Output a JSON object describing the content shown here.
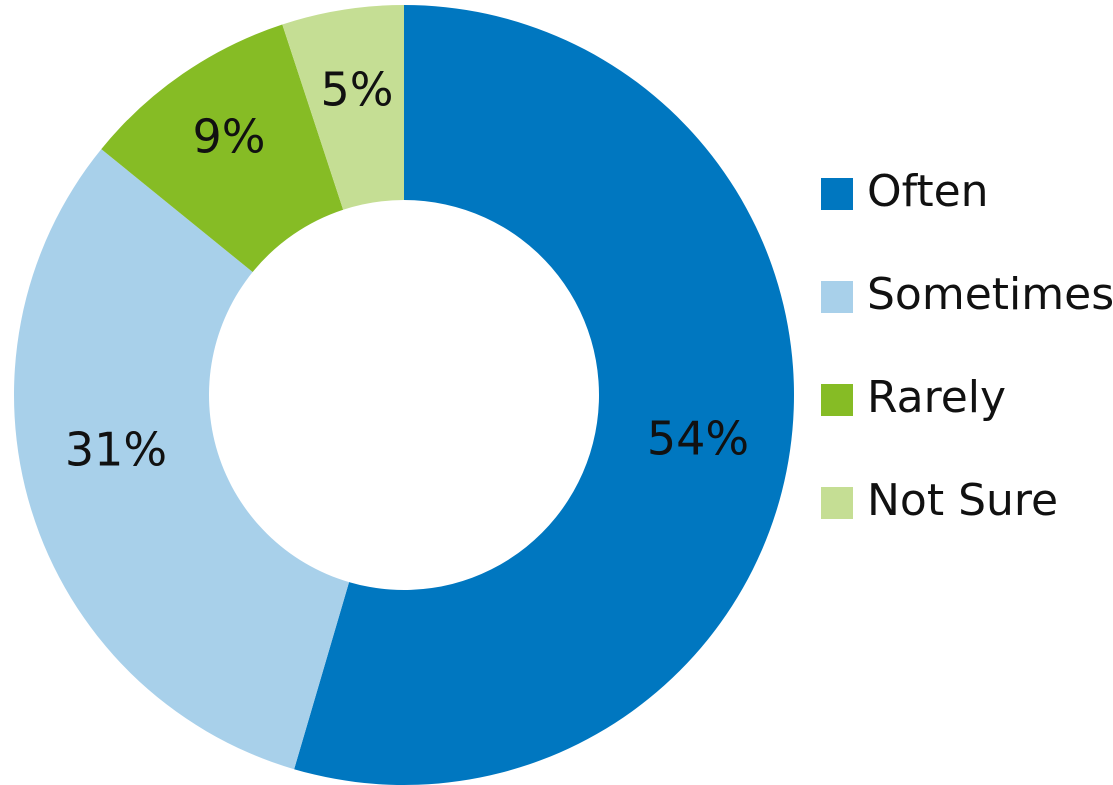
{
  "chart_data": {
    "type": "pie",
    "donut": true,
    "title": "",
    "slices": [
      {
        "label": "Often",
        "value": 54,
        "display": "54%",
        "color": "#0077C0"
      },
      {
        "label": "Sometimes",
        "value": 31,
        "display": "31%",
        "color": "#A8D0EA"
      },
      {
        "label": "Rarely",
        "value": 9,
        "display": "9%",
        "color": "#86BC25"
      },
      {
        "label": "Not Sure",
        "value": 5,
        "display": "5%",
        "color": "#C5DE94"
      }
    ],
    "legend_placement": "right"
  }
}
